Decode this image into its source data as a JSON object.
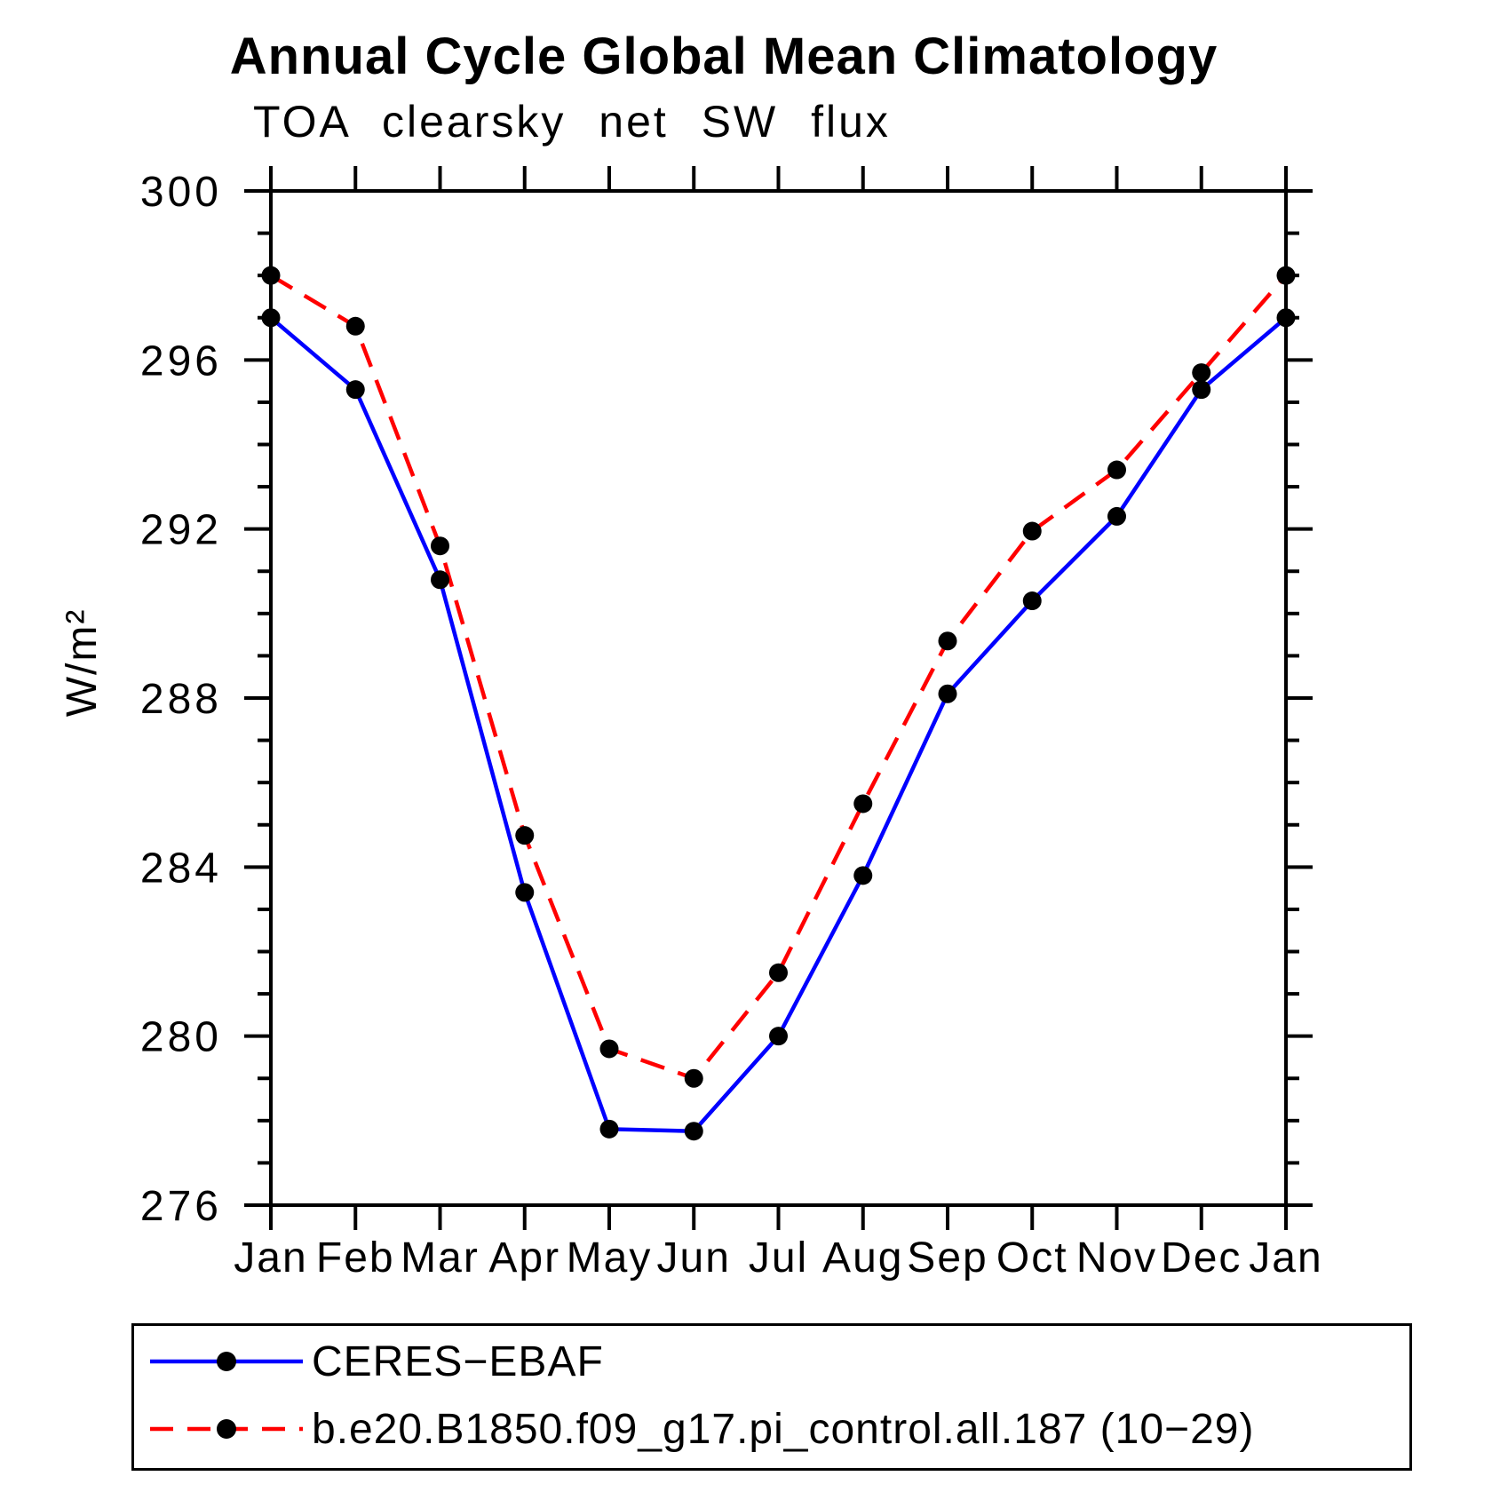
{
  "title": "Annual Cycle Global Mean Climatology",
  "subtitle": "TOA clearsky net SW flux",
  "chart_data": {
    "type": "line",
    "title": "Annual Cycle Global Mean Climatology",
    "subtitle": "TOA clearsky net SW flux",
    "ylabel": "W/m²",
    "x_tick_labels": [
      "Jan",
      "Feb",
      "Mar",
      "Apr",
      "May",
      "Jun",
      "Jul",
      "Aug",
      "Sep",
      "Oct",
      "Nov",
      "Dec",
      "Jan"
    ],
    "ylim": [
      276,
      300
    ],
    "y_major_ticks": [
      300,
      296,
      292,
      288,
      284,
      280,
      276
    ],
    "y_minor_step": 1,
    "grid": false,
    "legend_position": "bottom-left-box",
    "series": [
      {
        "name": "CERES−EBAF",
        "line_color": "#0000ff",
        "line_style": "solid",
        "marker": "circle",
        "marker_color": "#000000",
        "values": [
          297.0,
          295.3,
          290.8,
          283.4,
          277.8,
          277.75,
          280.0,
          283.8,
          288.1,
          290.3,
          292.3,
          295.3,
          297.0
        ]
      },
      {
        "name": "b.e20.B1850.f09_g17.pi_control.all.187 (10−29)",
        "line_color": "#ff0000",
        "line_style": "dashed",
        "marker": "circle",
        "marker_color": "#000000",
        "values": [
          298.0,
          296.8,
          291.6,
          284.75,
          279.7,
          279.0,
          281.5,
          285.5,
          289.35,
          291.95,
          293.4,
          295.7,
          298.0
        ]
      }
    ]
  },
  "colors": {
    "background": "#ffffff",
    "axis": "#000000",
    "text": "#000000"
  }
}
